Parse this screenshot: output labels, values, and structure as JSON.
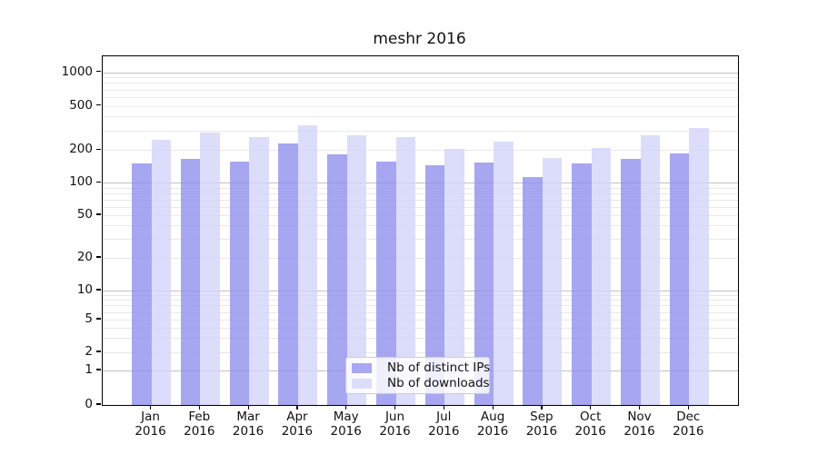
{
  "title": "meshr 2016",
  "chart_data": {
    "type": "bar",
    "title": "meshr 2016",
    "categories": [
      "Jan 2016",
      "Feb 2016",
      "Mar 2016",
      "Apr 2016",
      "May 2016",
      "Jun 2016",
      "Jul 2016",
      "Aug 2016",
      "Sep 2016",
      "Oct 2016",
      "Nov 2016",
      "Dec 2016"
    ],
    "series": [
      {
        "name": "Nb of distinct IPs",
        "color_fill": "rgba(144,144,238,0.80)",
        "color_solid": "#a8a8f1",
        "values": [
          150,
          167,
          157,
          230,
          183,
          158,
          146,
          154,
          114,
          150,
          166,
          188
        ]
      },
      {
        "name": "Nb of downloads",
        "color_fill": "rgba(211,211,250,0.80)",
        "color_solid": "#dcdcfb",
        "values": [
          246,
          288,
          262,
          332,
          271,
          260,
          204,
          238,
          168,
          208,
          271,
          318
        ]
      }
    ],
    "yscale": "symlog",
    "yticks": [
      0,
      1,
      2,
      5,
      10,
      20,
      50,
      100,
      200,
      500,
      1000
    ],
    "ylim": [
      0,
      1400
    ],
    "xlabel": "",
    "ylabel": "",
    "grid": true,
    "grid_major_values": [
      1,
      10,
      100,
      1000
    ],
    "legend_position": "lower center"
  },
  "legend": {
    "items": [
      {
        "label": "Nb of distinct IPs"
      },
      {
        "label": "Nb of downloads"
      }
    ]
  },
  "colors": {
    "bar_ips": "#a8a8f1",
    "bar_downloads": "#dcdcfb",
    "grid_major": "#c2c2c2",
    "grid_minor": "#e9e9e9",
    "axis": "#000000"
  }
}
